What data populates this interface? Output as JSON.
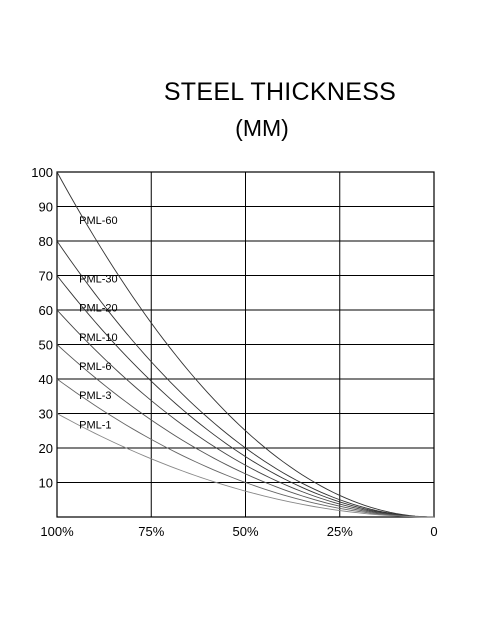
{
  "chart_data": {
    "type": "line",
    "title": "STEEL THICKNESS",
    "subtitle": "(MM)",
    "xlabel": "",
    "ylabel": "",
    "x_ticks": [
      "100%",
      "75%",
      "50%",
      "25%",
      "0"
    ],
    "x_values": [
      100,
      75,
      50,
      25,
      0
    ],
    "xlim": [
      100,
      0
    ],
    "y_ticks": [
      "100",
      "90",
      "80",
      "70",
      "60",
      "50",
      "40",
      "30",
      "20",
      "10"
    ],
    "ylim": [
      0,
      100
    ],
    "grid": true,
    "series": [
      {
        "name": "PML-60",
        "start": 100,
        "color": "#333333"
      },
      {
        "name": "PML-30",
        "start": 80,
        "color": "#333333"
      },
      {
        "name": "PML-20",
        "start": 70,
        "color": "#333333"
      },
      {
        "name": "PML-10",
        "start": 60,
        "color": "#444444"
      },
      {
        "name": "PML-6",
        "start": 50,
        "color": "#555555"
      },
      {
        "name": "PML-3",
        "start": 40,
        "color": "#666666"
      },
      {
        "name": "PML-1",
        "start": 30,
        "color": "#888888"
      }
    ]
  }
}
